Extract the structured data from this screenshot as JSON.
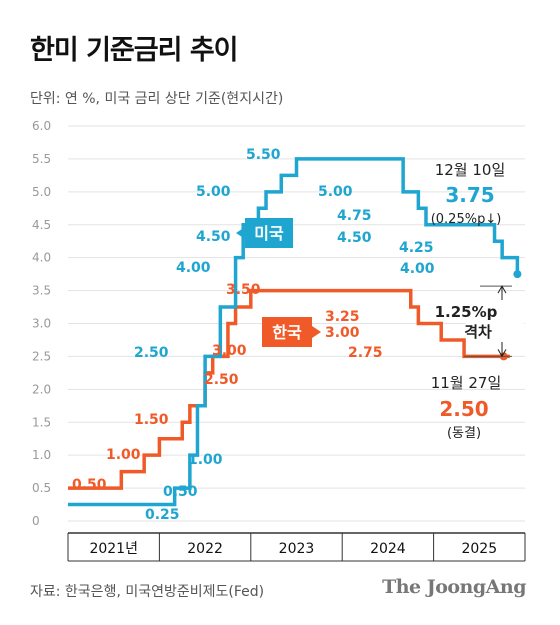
{
  "title": "한미 기준금리 추이",
  "unit_note": "단위: 연 %, 미국 금리 상단 기준(현지시간)",
  "source": "자료: 한국은행, 미국연방준비제도(Fed)",
  "brand": "The JoongAng",
  "colors": {
    "us": "#1ea5d0",
    "korea": "#f05a28",
    "grid": "#e3e3e3",
    "axis": "#333333"
  },
  "chart_data": {
    "type": "line",
    "title": "한미 기준금리 추이",
    "xlabel": "",
    "ylabel": "",
    "ylim": [
      0,
      6.0
    ],
    "yticks": [
      0,
      0.5,
      1.0,
      1.5,
      2.0,
      2.5,
      3.0,
      3.5,
      4.0,
      4.5,
      5.0,
      5.5,
      6.0
    ],
    "ytick_labels": [
      "0",
      "0.5",
      "1.0",
      "1.5",
      "2.0",
      "2.5",
      "3.0",
      "3.5",
      "4.0",
      "4.5",
      "5.0",
      "5.5",
      "6.0"
    ],
    "x_range": [
      "2021-01",
      "2025-12"
    ],
    "year_labels": [
      "2021년",
      "2022",
      "2023",
      "2024",
      "2025"
    ],
    "grid": true,
    "step": true,
    "series": [
      {
        "name": "미국",
        "x": [
          "2021-01",
          "2022-03",
          "2022-05",
          "2022-06",
          "2022-07",
          "2022-09",
          "2022-11",
          "2022-12",
          "2023-02",
          "2023-03",
          "2023-05",
          "2023-07",
          "2024-09",
          "2024-11",
          "2024-12",
          "2025-09",
          "2025-10",
          "2025-12"
        ],
        "values": [
          0.25,
          0.5,
          1.0,
          1.75,
          2.5,
          3.25,
          4.0,
          4.5,
          4.75,
          5.0,
          5.25,
          5.5,
          5.0,
          4.75,
          4.5,
          4.25,
          4.0,
          3.75
        ],
        "labels": [
          {
            "text": "0.25",
            "value": 0.25
          },
          {
            "text": "0.50",
            "value": 0.5
          },
          {
            "text": "1.00",
            "value": 1.0
          },
          {
            "text": "2.50",
            "value": 2.5
          },
          {
            "text": "4.00",
            "value": 4.0
          },
          {
            "text": "4.50",
            "value": 4.5
          },
          {
            "text": "5.00",
            "value": 5.0
          },
          {
            "text": "5.50",
            "value": 5.5
          },
          {
            "text": "5.00",
            "value": 5.0
          },
          {
            "text": "4.75",
            "value": 4.75
          },
          {
            "text": "4.50",
            "value": 4.5
          },
          {
            "text": "4.25",
            "value": 4.25
          },
          {
            "text": "4.00",
            "value": 4.0
          }
        ],
        "end_annotation": {
          "date": "12월 10일",
          "value": "3.75",
          "note": "(0.25%p↓)"
        }
      },
      {
        "name": "한국",
        "x": [
          "2021-01",
          "2021-08",
          "2021-11",
          "2022-01",
          "2022-04",
          "2022-05",
          "2022-07",
          "2022-08",
          "2022-10",
          "2022-11",
          "2023-01",
          "2024-10",
          "2024-11",
          "2025-02",
          "2025-05",
          "2025-11"
        ],
        "values": [
          0.5,
          0.75,
          1.0,
          1.25,
          1.5,
          1.75,
          2.25,
          2.5,
          3.0,
          3.25,
          3.5,
          3.25,
          3.0,
          2.75,
          2.5,
          2.5
        ],
        "labels": [
          {
            "text": "0.50",
            "value": 0.5
          },
          {
            "text": "1.00",
            "value": 1.0
          },
          {
            "text": "1.50",
            "value": 1.5
          },
          {
            "text": "2.50",
            "value": 2.5
          },
          {
            "text": "3.00",
            "value": 3.0
          },
          {
            "text": "3.50",
            "value": 3.5
          },
          {
            "text": "3.25",
            "value": 3.25
          },
          {
            "text": "3.00",
            "value": 3.0
          },
          {
            "text": "2.75",
            "value": 2.75
          }
        ],
        "end_annotation": {
          "date": "11월 27일",
          "value": "2.50",
          "note": "(동결)"
        }
      }
    ],
    "gap_annotation": {
      "line1": "1.25%p",
      "line2": "격차"
    }
  }
}
